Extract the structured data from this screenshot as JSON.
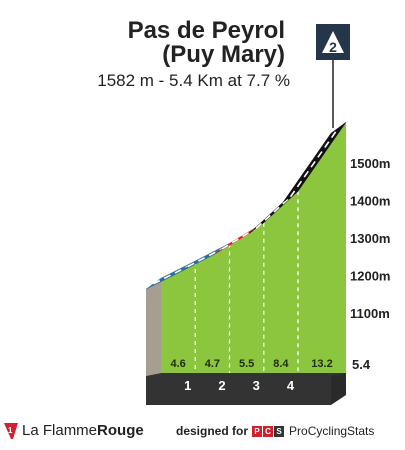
{
  "title_line1": "Pas de Peyrol",
  "title_line2": "(Puy Mary)",
  "subtitle": "1582 m - 5.4 Km at 7.7 %",
  "category": "2",
  "footer": {
    "brand_prefix": "La Flamme",
    "brand_suffix": "Rouge",
    "designed_for": "designed for",
    "pcs_letters": [
      "P",
      "C",
      "S"
    ],
    "pcs_name": "ProCyclingStats"
  },
  "colors": {
    "green": "#8cc63f",
    "blue": "#2e6e9e",
    "red": "#e3202b",
    "black": "#111111",
    "base": "#333333",
    "side": "#a59e91"
  },
  "chart_data": {
    "type": "area",
    "title": "Pas de Peyrol (Puy Mary)",
    "subtitle": "1582 m - 5.4 Km at 7.7 %",
    "xlabel": "",
    "ylabel": "",
    "x_unit": "km",
    "y_unit": "m",
    "xlim": [
      0,
      5.4
    ],
    "ylim": [
      1100,
      1582
    ],
    "y_ticks": [
      "1100m",
      "1200m",
      "1300m",
      "1400m",
      "1500m"
    ],
    "x_tick_labels": [
      "1",
      "2",
      "3",
      "4"
    ],
    "end_distance_label": "5.4",
    "segments": [
      {
        "from_km": 0,
        "to_km": 1,
        "gradient": 4.6,
        "gradient_label": "4.6",
        "color": "blue"
      },
      {
        "from_km": 1,
        "to_km": 2,
        "gradient": 4.7,
        "gradient_label": "4.7",
        "color": "blue"
      },
      {
        "from_km": 2,
        "to_km": 3,
        "gradient": 5.5,
        "gradient_label": "5.5",
        "color": "red"
      },
      {
        "from_km": 3,
        "to_km": 4,
        "gradient": 8.4,
        "gradient_label": "8.4",
        "color": "black"
      },
      {
        "from_km": 4,
        "to_km": 5.4,
        "gradient": 13.2,
        "gradient_label": "13.2",
        "color": "black"
      }
    ],
    "profile": [
      {
        "km": 0,
        "alt": 1166
      },
      {
        "km": 1,
        "alt": 1212
      },
      {
        "km": 2,
        "alt": 1259
      },
      {
        "km": 3,
        "alt": 1314
      },
      {
        "km": 4,
        "alt": 1398
      },
      {
        "km": 5.4,
        "alt": 1582
      }
    ]
  }
}
